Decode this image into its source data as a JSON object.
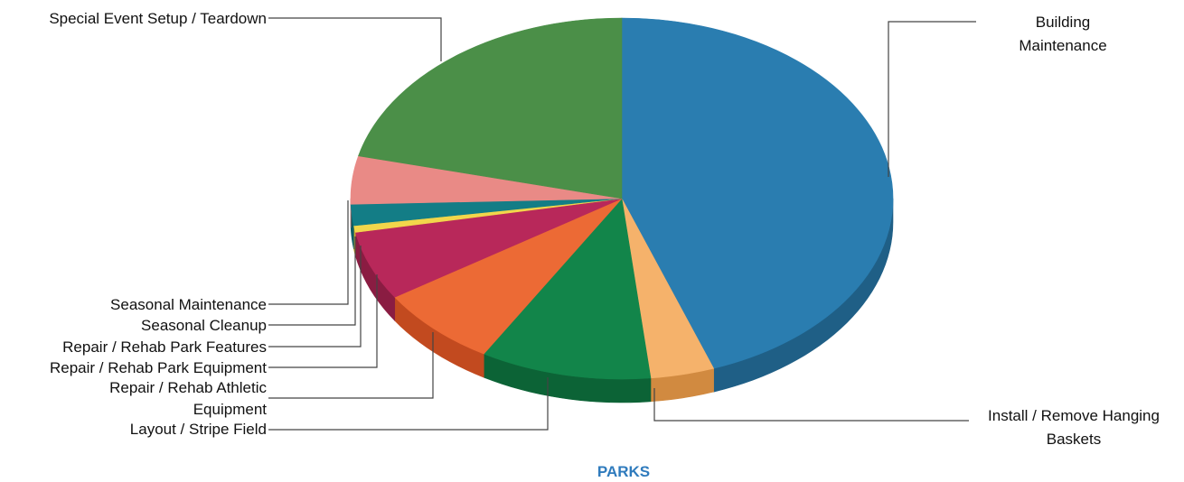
{
  "chart_data": {
    "type": "pie",
    "title": "PARKS",
    "title_color": "#2f7bbd",
    "slices": [
      {
        "label": "Building Maintenance",
        "value": 44.5,
        "color": "#2a7db0",
        "side_color": "#1f5f86"
      },
      {
        "label": "Install / Remove Hanging Baskets",
        "value": 3.8,
        "color": "#f5b26b",
        "side_color": "#d18a40"
      },
      {
        "label": "Layout / Stripe Field",
        "value": 10.2,
        "color": "#12854a",
        "side_color": "#0c6336"
      },
      {
        "label": "Repair / Rehab Athletic Equipment",
        "value": 7.3,
        "color": "#ec6a35",
        "side_color": "#c24a1f"
      },
      {
        "label": "Repair / Rehab Park Equipment",
        "value": 6.2,
        "color": "#b8285a",
        "side_color": "#8a1c42"
      },
      {
        "label": "Repair / Rehab Park Features",
        "value": 0.6,
        "color": "#f2d64b",
        "side_color": "#c9ad2f"
      },
      {
        "label": "Seasonal Cleanup",
        "value": 1.9,
        "color": "#137d86",
        "side_color": "#0e5d64"
      },
      {
        "label": "Seasonal Maintenance",
        "value": 4.3,
        "color": "#e98a86",
        "side_color": "#c46763"
      },
      {
        "label": "Special Event Setup / Teardown",
        "value": 21.2,
        "color": "#4b8f48",
        "side_color": "#366b34"
      }
    ]
  }
}
